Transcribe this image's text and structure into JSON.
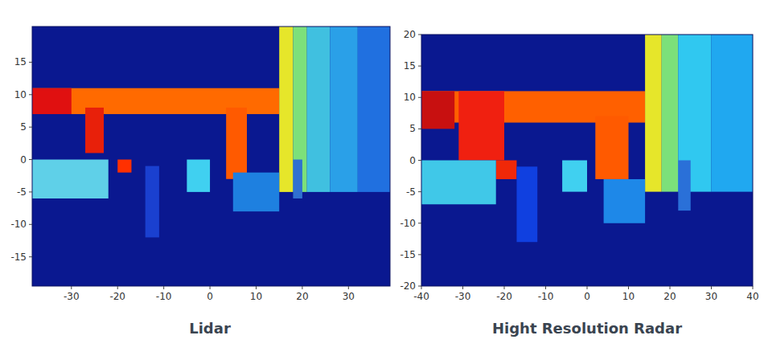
{
  "chart_data": [
    {
      "type": "image",
      "title": "Lidar",
      "color": "#0a1890",
      "xlim": [
        -38.5,
        39
      ],
      "ylim": [
        -19.5,
        20.5
      ],
      "xticks": [
        -30,
        -20,
        -10,
        0,
        10,
        20,
        30
      ],
      "yticks": [
        -15,
        -10,
        -5,
        0,
        5,
        10,
        15
      ],
      "regions": [
        {
          "x": [
            -38.5,
            15
          ],
          "y": [
            7,
            11
          ]
        },
        {
          "x": [
            -38.5,
            -30
          ],
          "y": [
            7,
            11
          ]
        },
        {
          "x": [
            -27,
            -23
          ],
          "y": [
            1,
            8
          ]
        },
        {
          "x": [
            3.5,
            8
          ],
          "y": [
            -3,
            8
          ]
        },
        {
          "x": [
            15,
            18
          ],
          "y": [
            -5,
            20.5
          ]
        },
        {
          "x": [
            18,
            21
          ],
          "y": [
            -5,
            20.5
          ]
        },
        {
          "x": [
            21,
            26
          ],
          "y": [
            -5,
            20.5
          ]
        },
        {
          "x": [
            26,
            32
          ],
          "y": [
            -5,
            20.5
          ]
        },
        {
          "x": [
            32,
            39
          ],
          "y": [
            -5,
            20.5
          ]
        },
        {
          "x": [
            -38.5,
            -22
          ],
          "y": [
            -6,
            0
          ]
        },
        {
          "x": [
            -20,
            -17
          ],
          "y": [
            -2,
            0
          ]
        },
        {
          "x": [
            -14,
            -11
          ],
          "y": [
            -12,
            -1
          ]
        },
        {
          "x": [
            -5,
            0
          ],
          "y": [
            -5,
            0
          ]
        },
        {
          "x": [
            5,
            15
          ],
          "y": [
            -8,
            -2
          ]
        },
        {
          "x": [
            18,
            20
          ],
          "y": [
            -6,
            0
          ]
        }
      ],
      "colors": [
        "#ff6a00",
        "#e01010",
        "#e8200a",
        "#ff5a00",
        "#e6e62a",
        "#7ce07a",
        "#40c0e0",
        "#2aa0e8",
        "#2070e0",
        "#5fd0e8",
        "#ff3000",
        "#1a40d0",
        "#40d0f0",
        "#1e80e0",
        "#3070d0"
      ]
    },
    {
      "type": "image",
      "title": "Hight Resolution Radar",
      "color": "#0a1890",
      "xlim": [
        -40,
        40
      ],
      "ylim": [
        -20,
        20
      ],
      "xticks": [
        -40,
        -30,
        -20,
        -10,
        0,
        10,
        20,
        30,
        40
      ],
      "yticks": [
        -20,
        -15,
        -10,
        -5,
        0,
        5,
        10,
        15,
        20
      ],
      "regions": [
        {
          "x": [
            -40,
            14
          ],
          "y": [
            6,
            11
          ]
        },
        {
          "x": [
            -40,
            -32
          ],
          "y": [
            5,
            11
          ]
        },
        {
          "x": [
            -31,
            -20
          ],
          "y": [
            0,
            11
          ]
        },
        {
          "x": [
            2,
            10
          ],
          "y": [
            -3,
            7
          ]
        },
        {
          "x": [
            -22,
            -17
          ],
          "y": [
            -3,
            0
          ]
        },
        {
          "x": [
            14,
            18
          ],
          "y": [
            -5,
            20
          ]
        },
        {
          "x": [
            18,
            22
          ],
          "y": [
            -5,
            20
          ]
        },
        {
          "x": [
            22,
            30
          ],
          "y": [
            -5,
            20
          ]
        },
        {
          "x": [
            30,
            40
          ],
          "y": [
            -5,
            20
          ]
        },
        {
          "x": [
            -40,
            -22
          ],
          "y": [
            -7,
            0
          ]
        },
        {
          "x": [
            -17,
            -12
          ],
          "y": [
            -13,
            -1
          ]
        },
        {
          "x": [
            -6,
            0
          ],
          "y": [
            -5,
            0
          ]
        },
        {
          "x": [
            4,
            14
          ],
          "y": [
            -10,
            -3
          ]
        },
        {
          "x": [
            22,
            25
          ],
          "y": [
            -8,
            0
          ]
        }
      ],
      "colors": [
        "#ff6000",
        "#c81010",
        "#f02010",
        "#ff5a00",
        "#f02808",
        "#e6e62a",
        "#7ce07a",
        "#30c8f0",
        "#20a8f0",
        "#40c8e8",
        "#1040e0",
        "#40d0f0",
        "#1e88e8",
        "#2a70d8"
      ]
    }
  ]
}
